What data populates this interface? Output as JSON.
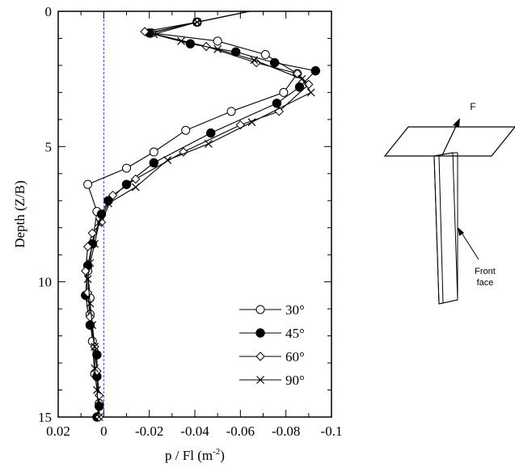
{
  "chart_data": {
    "type": "line",
    "xlabel": "p / Fl (m",
    "xlabel_sup": "-2",
    "xlabel_close": ")",
    "ylabel": "Depth (Z/B)",
    "xlim": [
      0.02,
      -0.1
    ],
    "ylim": [
      0,
      15
    ],
    "x_ticks": [
      "0.02",
      "0",
      "-0.02",
      "-0.04",
      "-0.06",
      "-0.08",
      "-0.1"
    ],
    "x_tick_values": [
      0.02,
      0,
      -0.02,
      -0.04,
      -0.06,
      -0.08,
      -0.1
    ],
    "y_ticks": [
      "0",
      "5",
      "10",
      "15"
    ],
    "y_tick_values": [
      0,
      5,
      10,
      15
    ],
    "reference_line": {
      "x": 0,
      "style": "dashed",
      "color": "#3b3bd6"
    },
    "series": [
      {
        "name": "30°",
        "marker": "open-circle",
        "points": [
          [
            -0.064,
            0.0
          ],
          [
            -0.041,
            0.4
          ],
          [
            -0.021,
            0.8
          ],
          [
            -0.05,
            1.1
          ],
          [
            -0.071,
            1.6
          ],
          [
            -0.085,
            2.3
          ],
          [
            -0.079,
            3.0
          ],
          [
            -0.056,
            3.7
          ],
          [
            -0.036,
            4.4
          ],
          [
            -0.022,
            5.2
          ],
          [
            -0.01,
            5.8
          ],
          [
            0.007,
            6.4
          ],
          [
            0.003,
            7.4
          ],
          [
            0.005,
            8.6
          ],
          [
            0.007,
            9.6
          ],
          [
            0.006,
            10.6
          ],
          [
            0.006,
            11.2
          ],
          [
            0.005,
            12.2
          ],
          [
            0.004,
            13.4
          ],
          [
            0.002,
            14.5
          ],
          [
            0.003,
            15.0
          ]
        ]
      },
      {
        "name": "45°",
        "marker": "filled-circle",
        "points": [
          [
            -0.064,
            0.0
          ],
          [
            -0.041,
            0.4
          ],
          [
            -0.02,
            0.8
          ],
          [
            -0.038,
            1.2
          ],
          [
            -0.058,
            1.5
          ],
          [
            -0.075,
            1.9
          ],
          [
            -0.093,
            2.2
          ],
          [
            -0.086,
            2.8
          ],
          [
            -0.076,
            3.4
          ],
          [
            -0.047,
            4.5
          ],
          [
            -0.022,
            5.6
          ],
          [
            -0.01,
            6.4
          ],
          [
            -0.002,
            7.0
          ],
          [
            0.001,
            7.5
          ],
          [
            0.005,
            8.6
          ],
          [
            0.007,
            9.4
          ],
          [
            0.008,
            10.5
          ],
          [
            0.006,
            11.6
          ],
          [
            0.003,
            12.7
          ],
          [
            0.003,
            13.5
          ],
          [
            0.002,
            14.6
          ],
          [
            0.003,
            15.0
          ]
        ]
      },
      {
        "name": "60°",
        "marker": "open-diamond",
        "points": [
          [
            -0.064,
            0.0
          ],
          [
            -0.041,
            0.4
          ],
          [
            -0.018,
            0.75
          ],
          [
            -0.045,
            1.3
          ],
          [
            -0.067,
            1.9
          ],
          [
            -0.085,
            2.3
          ],
          [
            -0.09,
            2.7
          ],
          [
            -0.077,
            3.7
          ],
          [
            -0.06,
            4.2
          ],
          [
            -0.035,
            5.2
          ],
          [
            -0.014,
            6.2
          ],
          [
            -0.004,
            6.8
          ],
          [
            0.001,
            7.8
          ],
          [
            0.005,
            8.2
          ],
          [
            0.007,
            8.7
          ],
          [
            0.008,
            9.6
          ],
          [
            0.007,
            10.4
          ],
          [
            0.006,
            11.3
          ],
          [
            0.004,
            12.4
          ],
          [
            0.003,
            13.3
          ],
          [
            0.002,
            14.2
          ],
          [
            0.002,
            15.0
          ]
        ]
      },
      {
        "name": "90°",
        "marker": "cross",
        "points": [
          [
            -0.064,
            0.0
          ],
          [
            -0.041,
            0.4
          ],
          [
            -0.022,
            0.85
          ],
          [
            -0.034,
            1.1
          ],
          [
            -0.05,
            1.4
          ],
          [
            -0.066,
            1.8
          ],
          [
            -0.087,
            2.5
          ],
          [
            -0.091,
            3.0
          ],
          [
            -0.065,
            4.1
          ],
          [
            -0.046,
            4.9
          ],
          [
            -0.028,
            5.5
          ],
          [
            -0.014,
            6.5
          ],
          [
            -0.002,
            7.1
          ],
          [
            0.002,
            7.8
          ],
          [
            0.004,
            8.6
          ],
          [
            0.006,
            9.3
          ],
          [
            0.007,
            9.9
          ],
          [
            0.006,
            10.8
          ],
          [
            0.005,
            11.6
          ],
          [
            0.004,
            12.4
          ],
          [
            0.004,
            13.2
          ],
          [
            0.003,
            14.0
          ],
          [
            0.002,
            15.0
          ]
        ]
      }
    ],
    "legend": {
      "placement": "bottom-right"
    }
  },
  "schematic": {
    "force_label": "F",
    "front_face_line1": "Front",
    "front_face_line2": "face"
  }
}
